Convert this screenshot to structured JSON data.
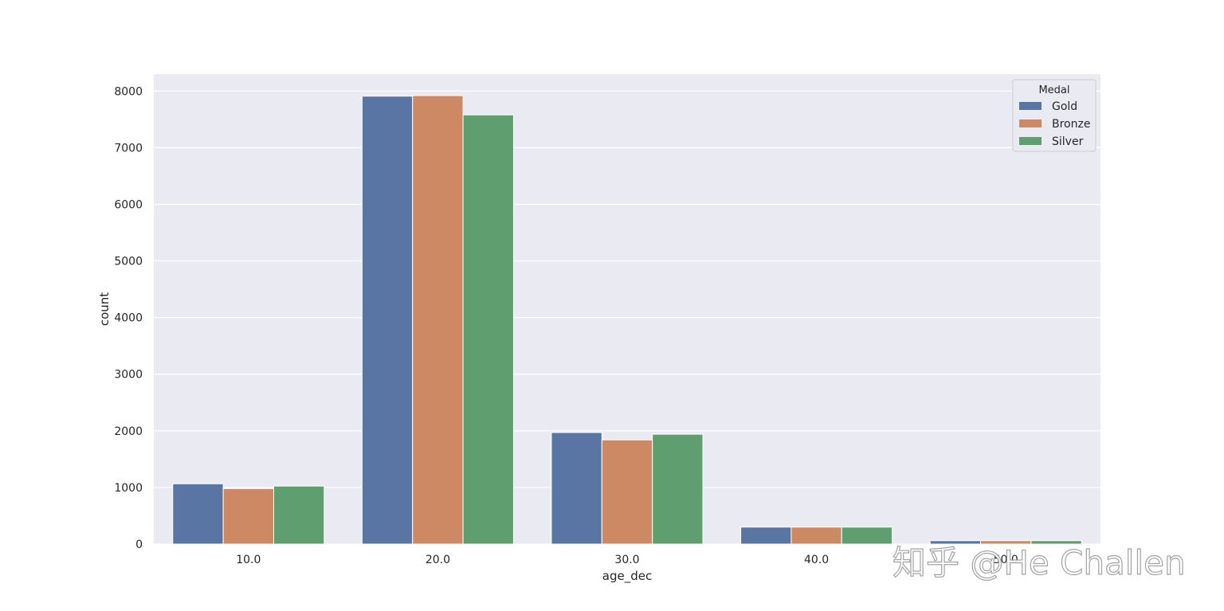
{
  "chart_data": {
    "type": "bar",
    "title": "",
    "xlabel": "age_dec",
    "ylabel": "count",
    "categories": [
      "10.0",
      "20.0",
      "30.0",
      "40.0",
      "50.0"
    ],
    "series": [
      {
        "name": "Gold",
        "color": "#5875a4",
        "values": [
          1065,
          7910,
          1970,
          300,
          60
        ]
      },
      {
        "name": "Bronze",
        "color": "#cc8963",
        "values": [
          980,
          7920,
          1840,
          300,
          60
        ]
      },
      {
        "name": "Silver",
        "color": "#5f9e6e",
        "values": [
          1025,
          7580,
          1940,
          300,
          60
        ]
      }
    ],
    "ylim": [
      0,
      8300
    ],
    "yticks": [
      0,
      1000,
      2000,
      3000,
      4000,
      5000,
      6000,
      7000,
      8000
    ],
    "grid": true,
    "background": "#eaeaf2",
    "legend": {
      "title": "Medal",
      "placement": "top-right"
    }
  },
  "watermark": "知乎 @He Challen"
}
